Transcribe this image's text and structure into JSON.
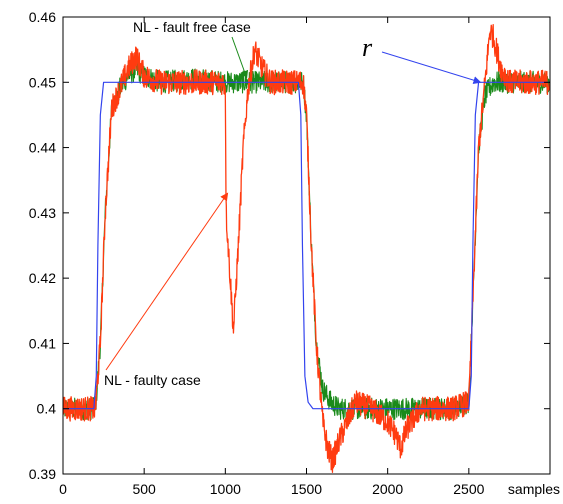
{
  "chart_data": {
    "type": "line",
    "title": "",
    "xlabel": "samples",
    "ylabel": "",
    "xlim": [
      0,
      3000
    ],
    "ylim": [
      0.39,
      0.46
    ],
    "xticks": [
      0,
      500,
      1000,
      1500,
      2000,
      2500
    ],
    "yticks": [
      0.39,
      0.4,
      0.41,
      0.42,
      0.43,
      0.44,
      0.45,
      0.46
    ],
    "ytick_labels": [
      "0.39",
      "0.4",
      "0.41",
      "0.42",
      "0.43",
      "0.44",
      "0.45",
      "0.46"
    ],
    "grid": false,
    "series": [
      {
        "name": "r",
        "color": "#3344ee",
        "x": [
          0,
          190,
          205,
          215,
          230,
          250,
          1450,
          1465,
          1475,
          1490,
          1510,
          1540,
          2500,
          2515,
          2525,
          2540,
          2560,
          3000
        ],
        "y": [
          0.4,
          0.4,
          0.405,
          0.425,
          0.445,
          0.45,
          0.45,
          0.445,
          0.425,
          0.405,
          0.401,
          0.4,
          0.4,
          0.405,
          0.425,
          0.445,
          0.45,
          0.45
        ]
      },
      {
        "name": "NL - fault free case",
        "color": "#1a8a1a",
        "x": [
          0,
          200,
          230,
          260,
          300,
          350,
          400,
          450,
          500,
          600,
          800,
          1000,
          1200,
          1400,
          1480,
          1500,
          1530,
          1560,
          1600,
          1650,
          1700,
          1800,
          2000,
          2200,
          2400,
          2500,
          2530,
          2560,
          2600,
          2650,
          2700,
          3000
        ],
        "y": [
          0.4,
          0.4,
          0.41,
          0.43,
          0.446,
          0.449,
          0.451,
          0.452,
          0.451,
          0.45,
          0.4505,
          0.45,
          0.45,
          0.45,
          0.45,
          0.445,
          0.425,
          0.41,
          0.403,
          0.401,
          0.4,
          0.4,
          0.4,
          0.4,
          0.4,
          0.401,
          0.42,
          0.44,
          0.448,
          0.45,
          0.45,
          0.45
        ]
      },
      {
        "name": "NL - faulty case",
        "color": "#ff3b10",
        "x": [
          0,
          200,
          230,
          260,
          300,
          350,
          400,
          450,
          500,
          600,
          800,
          990,
          1000,
          1005,
          1030,
          1050,
          1080,
          1110,
          1140,
          1180,
          1230,
          1280,
          1350,
          1480,
          1500,
          1530,
          1560,
          1600,
          1630,
          1660,
          1700,
          1750,
          1800,
          1900,
          2000,
          2050,
          2080,
          2120,
          2200,
          2400,
          2500,
          2530,
          2560,
          2600,
          2630,
          2650,
          2700,
          2750,
          3000
        ],
        "y": [
          0.4,
          0.4,
          0.41,
          0.43,
          0.446,
          0.449,
          0.452,
          0.454,
          0.451,
          0.45,
          0.45,
          0.45,
          0.449,
          0.43,
          0.42,
          0.412,
          0.425,
          0.44,
          0.449,
          0.455,
          0.452,
          0.45,
          0.45,
          0.45,
          0.445,
          0.425,
          0.41,
          0.398,
          0.394,
          0.392,
          0.395,
          0.398,
          0.401,
          0.4,
          0.398,
          0.396,
          0.394,
          0.397,
          0.4,
          0.4,
          0.401,
          0.42,
          0.44,
          0.45,
          0.458,
          0.457,
          0.452,
          0.45,
          0.45
        ]
      }
    ],
    "annotations": [
      {
        "text": "NL - fault free case",
        "target": [
          1150,
          0.451
        ]
      },
      {
        "text": "NL - faulty case",
        "target": [
          1020,
          0.433
        ]
      },
      {
        "text": "r",
        "target": [
          2590,
          0.45
        ]
      }
    ]
  }
}
